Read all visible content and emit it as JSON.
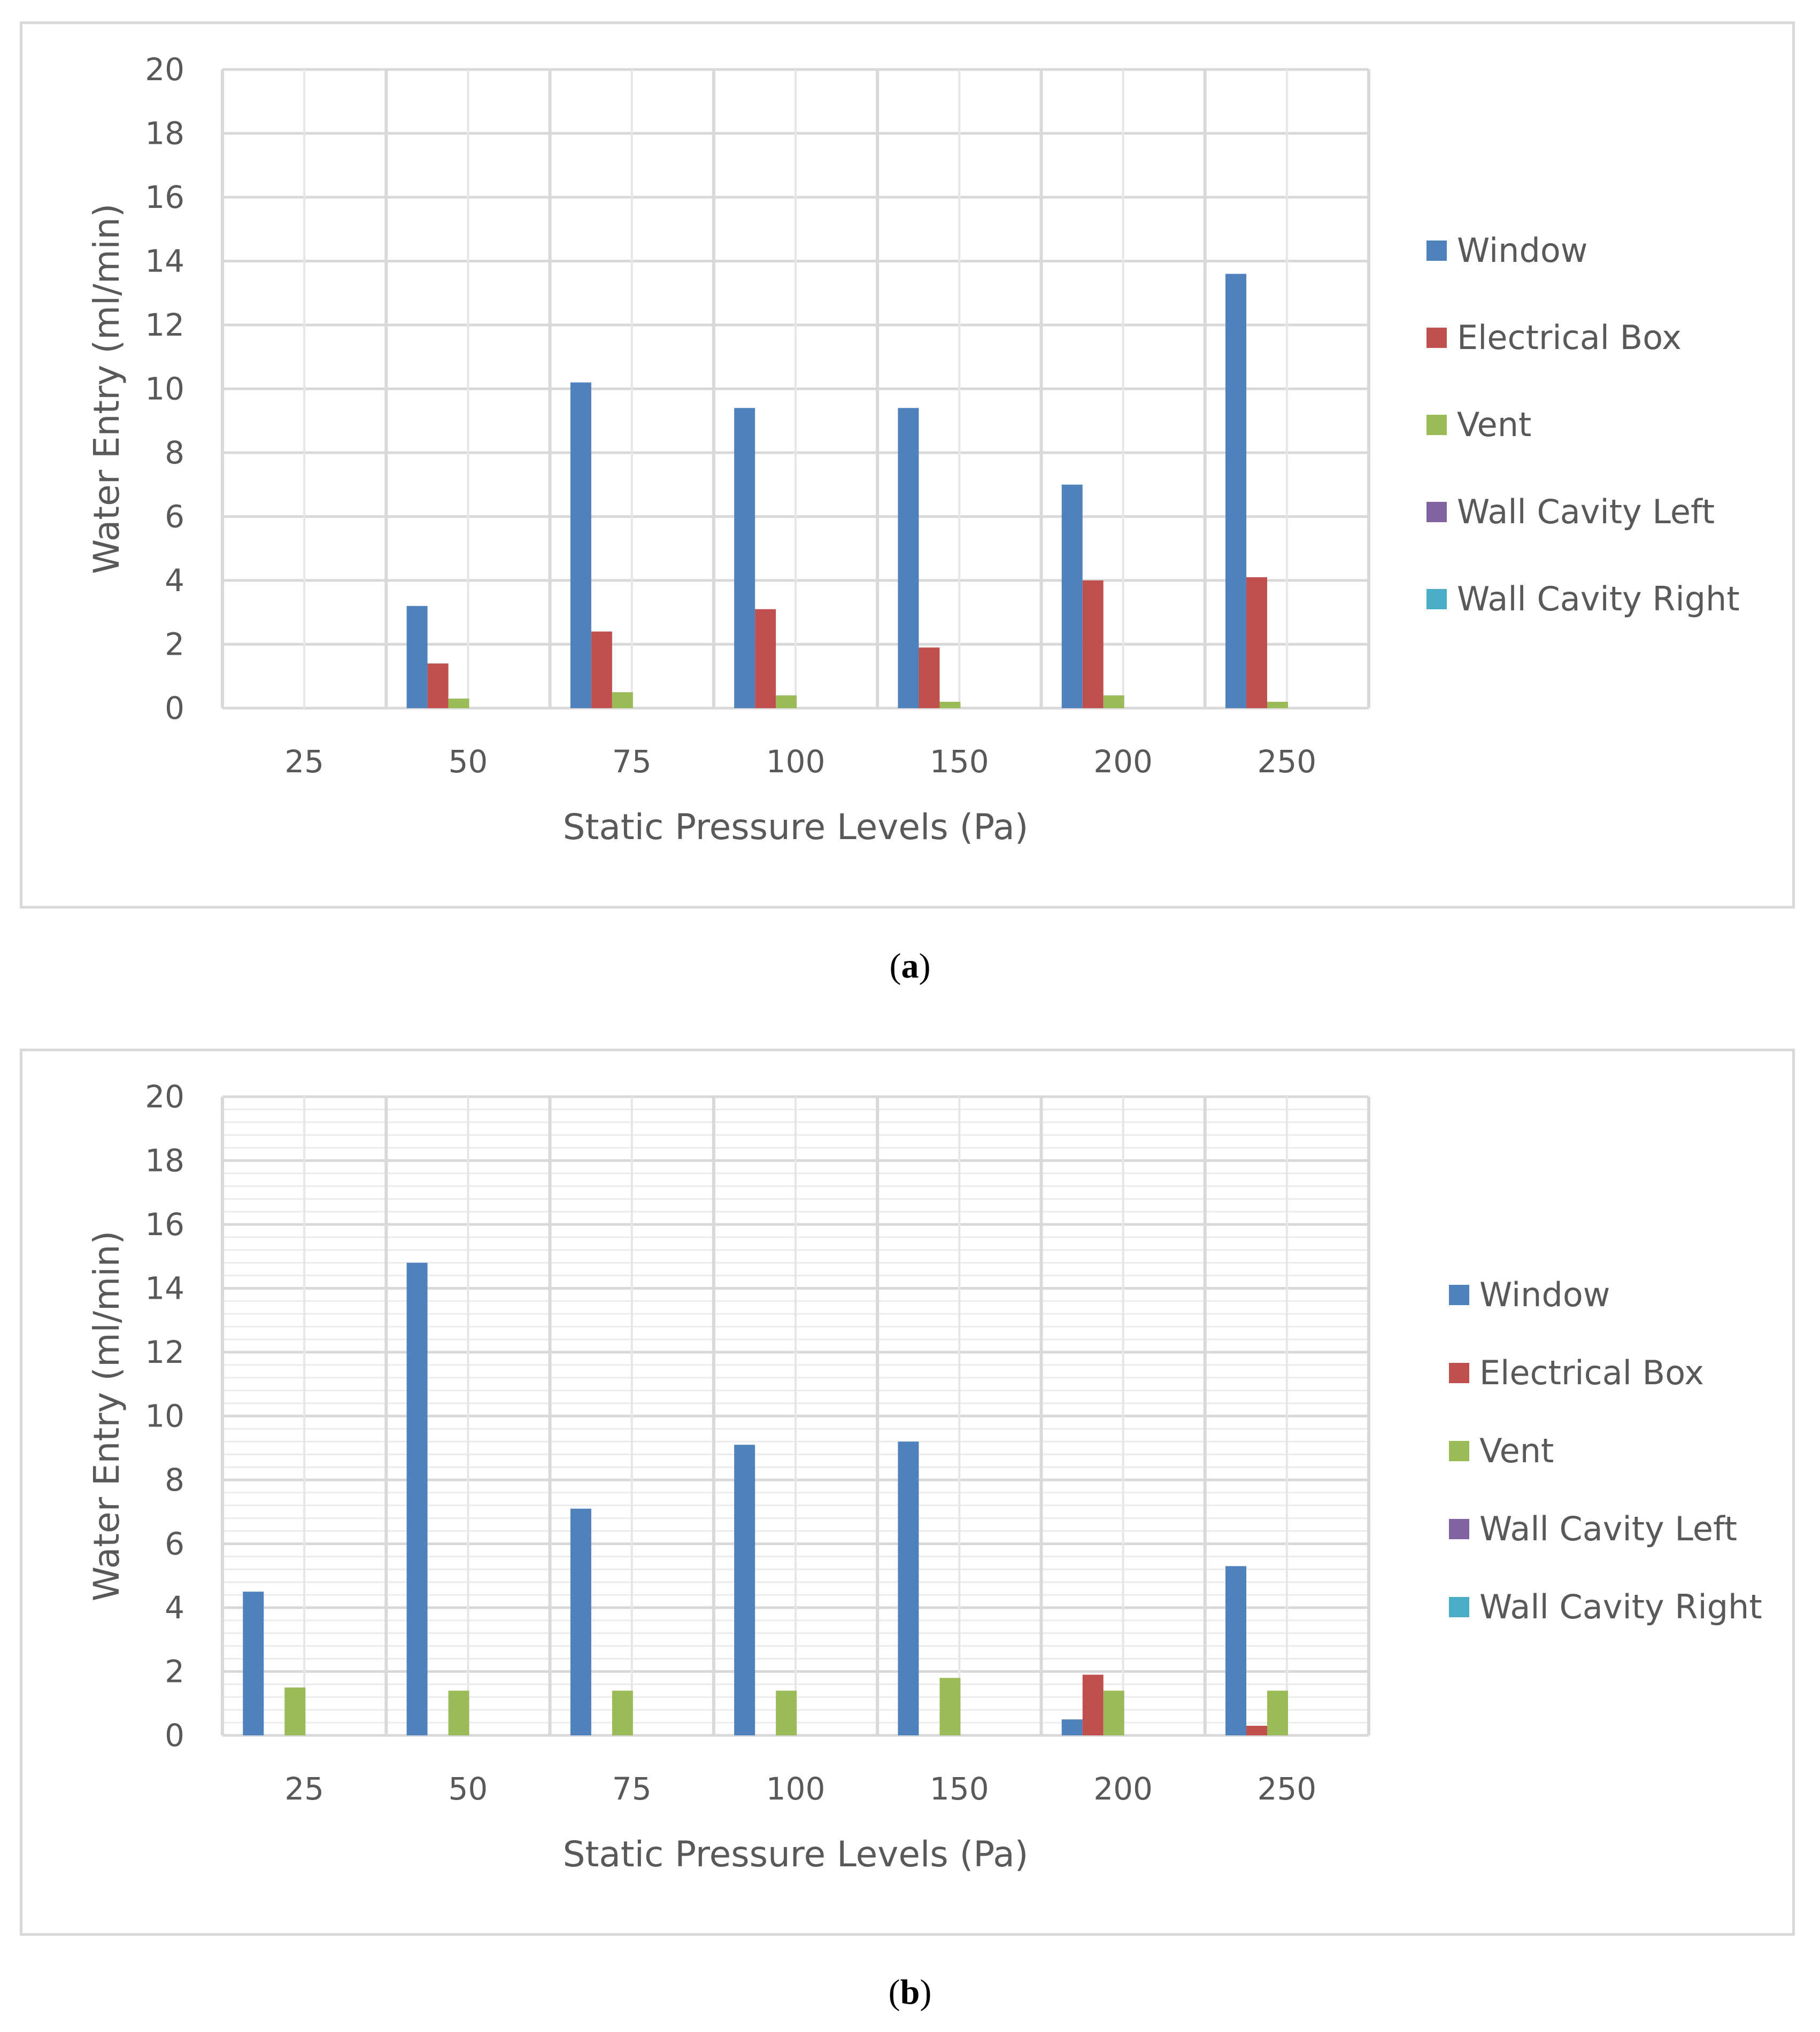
{
  "chart_data": [
    {
      "type": "bar",
      "panel": "a",
      "categories": [
        "25",
        "50",
        "75",
        "100",
        "150",
        "200",
        "250"
      ],
      "series": [
        {
          "name": "Window",
          "color": "#4f81bd",
          "values": [
            0,
            3.2,
            10.2,
            9.4,
            9.4,
            7.0,
            13.6
          ]
        },
        {
          "name": "Electrical Box",
          "color": "#c0504d",
          "values": [
            0,
            1.4,
            2.4,
            3.1,
            1.9,
            4.0,
            4.1
          ]
        },
        {
          "name": "Vent",
          "color": "#9bbb59",
          "values": [
            0,
            0.3,
            0.5,
            0.4,
            0.2,
            0.4,
            0.2
          ]
        },
        {
          "name": "Wall Cavity Left",
          "color": "#8064a2",
          "values": [
            0,
            0,
            0,
            0,
            0,
            0,
            0
          ]
        },
        {
          "name": "Wall Cavity Right",
          "color": "#4bacc6",
          "values": [
            0,
            0,
            0,
            0,
            0,
            0,
            0
          ]
        }
      ],
      "yticks": [
        "0",
        "2",
        "4",
        "6",
        "8",
        "10",
        "12",
        "14",
        "16",
        "18",
        "20"
      ],
      "ylim": [
        0,
        20
      ],
      "xlabel": "Static Pressure Levels (Pa)",
      "ylabel": "Water Entry (ml/min)",
      "minor_grid": false,
      "legend": "right"
    },
    {
      "type": "bar",
      "panel": "b",
      "categories": [
        "25",
        "50",
        "75",
        "100",
        "150",
        "200",
        "250"
      ],
      "series": [
        {
          "name": "Window",
          "color": "#4f81bd",
          "values": [
            4.5,
            14.8,
            7.1,
            9.1,
            9.2,
            0.5,
            5.3
          ]
        },
        {
          "name": "Electrical Box",
          "color": "#c0504d",
          "values": [
            0,
            0,
            0,
            0,
            0,
            1.9,
            0.3
          ]
        },
        {
          "name": "Vent",
          "color": "#9bbb59",
          "values": [
            1.5,
            1.4,
            1.4,
            1.4,
            1.8,
            1.4,
            1.4
          ]
        },
        {
          "name": "Wall Cavity Left",
          "color": "#8064a2",
          "values": [
            0,
            0,
            0,
            0,
            0,
            0,
            0
          ]
        },
        {
          "name": "Wall Cavity Right",
          "color": "#4bacc6",
          "values": [
            0,
            0,
            0,
            0,
            0,
            0,
            0
          ]
        }
      ],
      "yticks": [
        "0",
        "2",
        "4",
        "6",
        "8",
        "10",
        "12",
        "14",
        "16",
        "18",
        "20"
      ],
      "ylim": [
        0,
        20
      ],
      "xlabel": "Static Pressure Levels (Pa)",
      "ylabel": "Water Entry (ml/min)",
      "minor_grid": true,
      "legend": "right"
    }
  ],
  "captions": {
    "a": {
      "open": "(",
      "letter": "a",
      "close": ")"
    },
    "b": {
      "open": "(",
      "letter": "b",
      "close": ")"
    }
  }
}
